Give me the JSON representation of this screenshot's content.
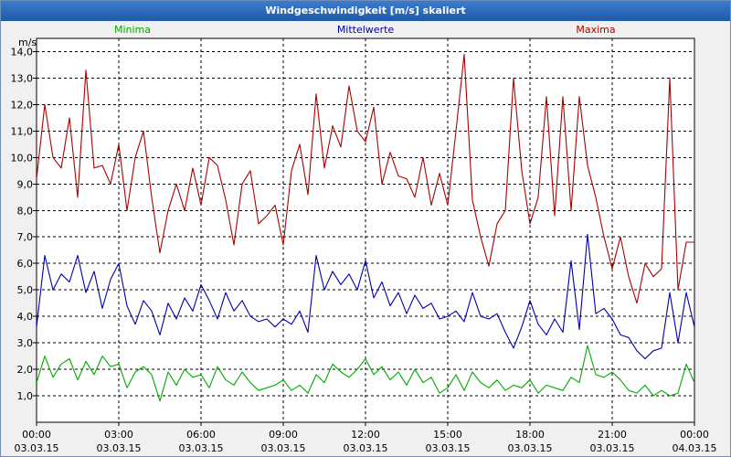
{
  "window": {
    "title": "Windgeschwindigkeit [m/s] skaliert"
  },
  "colors": {
    "min": "#00aa00",
    "mean": "#0000aa",
    "max": "#aa0000",
    "grid": "#000000"
  },
  "chart_data": {
    "type": "line",
    "title": "Windgeschwindigkeit [m/s] skaliert",
    "ylabel": "m/s",
    "ylim": [
      0,
      14.5
    ],
    "yticks": [
      1.0,
      2.0,
      3.0,
      4.0,
      5.0,
      6.0,
      7.0,
      8.0,
      9.0,
      10.0,
      11.0,
      12.0,
      13.0,
      14.0
    ],
    "ytick_labels": [
      "1,0",
      "2,0",
      "3,0",
      "4,0",
      "5,0",
      "6,0",
      "7,0",
      "8,0",
      "9,0",
      "10,0",
      "11,0",
      "12,0",
      "13,0",
      "14,0"
    ],
    "xlim": [
      0,
      24
    ],
    "xticks": [
      0,
      3,
      6,
      9,
      12,
      15,
      18,
      21,
      24
    ],
    "xtick_time_labels": [
      "00:00",
      "03:00",
      "06:00",
      "09:00",
      "12:00",
      "15:00",
      "18:00",
      "21:00",
      "00:00"
    ],
    "xtick_date_labels": [
      "03.03.15",
      "03.03.15",
      "03.03.15",
      "03.03.15",
      "03.03.15",
      "03.03.15",
      "03.03.15",
      "03.03.15",
      "04.03.15"
    ],
    "legend_position": "top",
    "series": [
      {
        "name": "Minima",
        "key": "min",
        "x": [
          0,
          0.3,
          0.6,
          0.9,
          1.2,
          1.5,
          1.8,
          2.1,
          2.4,
          2.7,
          3.0,
          3.3,
          3.6,
          3.9,
          4.2,
          4.5,
          4.8,
          5.1,
          5.4,
          5.7,
          6.0,
          6.3,
          6.6,
          6.9,
          7.2,
          7.5,
          7.8,
          8.1,
          8.4,
          8.7,
          9.0,
          9.3,
          9.6,
          9.9,
          10.2,
          10.5,
          10.8,
          11.1,
          11.4,
          11.7,
          12.0,
          12.3,
          12.6,
          12.9,
          13.2,
          13.5,
          13.8,
          14.1,
          14.4,
          14.7,
          15.0,
          15.3,
          15.6,
          15.9,
          16.2,
          16.5,
          16.8,
          17.1,
          17.4,
          17.7,
          18.0,
          18.3,
          18.6,
          18.9,
          19.2,
          19.5,
          19.8,
          20.1,
          20.4,
          20.7,
          21.0,
          21.3,
          21.6,
          21.9,
          22.2,
          22.5,
          22.8,
          23.1,
          23.4,
          23.7,
          24.0
        ],
        "values": [
          1.5,
          2.5,
          1.7,
          2.2,
          2.4,
          1.6,
          2.3,
          1.8,
          2.5,
          2.1,
          2.2,
          1.3,
          1.9,
          2.1,
          1.8,
          0.8,
          1.9,
          1.4,
          2.0,
          1.7,
          1.8,
          1.3,
          2.1,
          1.6,
          1.4,
          1.9,
          1.5,
          1.2,
          1.3,
          1.4,
          1.6,
          1.2,
          1.4,
          1.1,
          1.8,
          1.5,
          2.2,
          1.9,
          1.7,
          2.0,
          2.4,
          1.8,
          2.1,
          1.6,
          1.9,
          1.4,
          2.0,
          1.5,
          1.7,
          1.1,
          1.3,
          1.8,
          1.2,
          1.9,
          1.5,
          1.3,
          1.6,
          1.2,
          1.4,
          1.3,
          1.6,
          1.1,
          1.4,
          1.3,
          1.2,
          1.7,
          1.5,
          2.9,
          1.8,
          1.7,
          1.9,
          1.6,
          1.2,
          1.1,
          1.4,
          1.0,
          1.2,
          1.0,
          1.1,
          2.2,
          1.5
        ]
      },
      {
        "name": "Mittelwerte",
        "key": "mean",
        "x": [
          0,
          0.3,
          0.6,
          0.9,
          1.2,
          1.5,
          1.8,
          2.1,
          2.4,
          2.7,
          3.0,
          3.3,
          3.6,
          3.9,
          4.2,
          4.5,
          4.8,
          5.1,
          5.4,
          5.7,
          6.0,
          6.3,
          6.6,
          6.9,
          7.2,
          7.5,
          7.8,
          8.1,
          8.4,
          8.7,
          9.0,
          9.3,
          9.6,
          9.9,
          10.2,
          10.5,
          10.8,
          11.1,
          11.4,
          11.7,
          12.0,
          12.3,
          12.6,
          12.9,
          13.2,
          13.5,
          13.8,
          14.1,
          14.4,
          14.7,
          15.0,
          15.3,
          15.6,
          15.9,
          16.2,
          16.5,
          16.8,
          17.1,
          17.4,
          17.7,
          18.0,
          18.3,
          18.6,
          18.9,
          19.2,
          19.5,
          19.8,
          20.1,
          20.4,
          20.7,
          21.0,
          21.3,
          21.6,
          21.9,
          22.2,
          22.5,
          22.8,
          23.1,
          23.4,
          23.7,
          24.0
        ],
        "values": [
          3.6,
          6.3,
          5.0,
          5.6,
          5.3,
          6.3,
          4.9,
          5.7,
          4.3,
          5.4,
          6.0,
          4.4,
          3.7,
          4.6,
          4.2,
          3.3,
          4.5,
          3.9,
          4.7,
          4.2,
          5.2,
          4.6,
          3.9,
          4.9,
          4.2,
          4.6,
          4.0,
          3.8,
          3.9,
          3.6,
          3.9,
          3.7,
          4.2,
          3.4,
          6.3,
          5.0,
          5.7,
          5.2,
          5.6,
          5.0,
          6.1,
          4.7,
          5.3,
          4.4,
          4.9,
          4.1,
          4.8,
          4.3,
          4.5,
          3.9,
          4.0,
          4.2,
          3.8,
          4.9,
          4.0,
          3.9,
          4.1,
          3.4,
          2.8,
          3.6,
          4.6,
          3.7,
          3.3,
          3.9,
          3.4,
          6.1,
          3.5,
          7.1,
          4.1,
          4.3,
          3.9,
          3.3,
          3.2,
          2.7,
          2.4,
          2.7,
          2.8,
          4.9,
          3.0,
          4.9,
          3.6
        ]
      },
      {
        "name": "Maxima",
        "key": "max",
        "x": [
          0,
          0.3,
          0.6,
          0.9,
          1.2,
          1.5,
          1.8,
          2.1,
          2.4,
          2.7,
          3.0,
          3.3,
          3.6,
          3.9,
          4.2,
          4.5,
          4.8,
          5.1,
          5.4,
          5.7,
          6.0,
          6.3,
          6.6,
          6.9,
          7.2,
          7.5,
          7.8,
          8.1,
          8.4,
          8.7,
          9.0,
          9.3,
          9.6,
          9.9,
          10.2,
          10.5,
          10.8,
          11.1,
          11.4,
          11.7,
          12.0,
          12.3,
          12.6,
          12.9,
          13.2,
          13.5,
          13.8,
          14.1,
          14.4,
          14.7,
          15.0,
          15.3,
          15.6,
          15.9,
          16.2,
          16.5,
          16.8,
          17.1,
          17.4,
          17.7,
          18.0,
          18.3,
          18.6,
          18.9,
          19.2,
          19.5,
          19.8,
          20.1,
          20.4,
          20.7,
          21.0,
          21.3,
          21.6,
          21.9,
          22.2,
          22.5,
          22.8,
          23.1,
          23.4,
          23.7,
          24.0
        ],
        "values": [
          9.2,
          12.0,
          10.0,
          9.6,
          11.5,
          8.5,
          13.3,
          9.6,
          9.7,
          9.0,
          10.5,
          8.0,
          10.0,
          11.0,
          8.5,
          6.4,
          8.0,
          9.0,
          8.0,
          9.6,
          8.2,
          10.0,
          9.7,
          8.4,
          6.7,
          9.0,
          9.5,
          7.5,
          7.8,
          8.2,
          6.7,
          9.5,
          10.5,
          8.6,
          12.4,
          9.6,
          11.2,
          10.4,
          12.7,
          11.0,
          10.6,
          11.9,
          9.0,
          10.2,
          9.3,
          9.2,
          8.5,
          10.0,
          8.2,
          9.4,
          8.2,
          11.0,
          13.9,
          8.4,
          7.0,
          5.9,
          7.5,
          8.0,
          13.0,
          9.5,
          7.5,
          8.5,
          12.3,
          7.8,
          12.3,
          8.0,
          12.3,
          9.7,
          8.5,
          7.0,
          5.8,
          7.0,
          5.5,
          4.5,
          6.0,
          5.5,
          5.8,
          13.0,
          5.0,
          6.8,
          6.8
        ]
      }
    ]
  }
}
